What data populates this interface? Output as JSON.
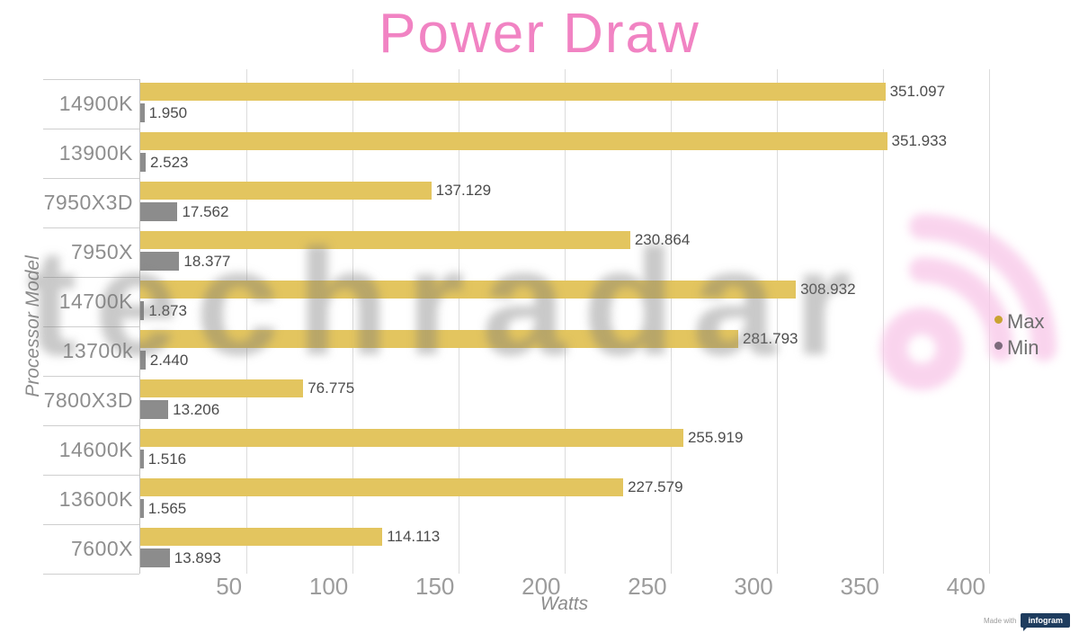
{
  "title": "Power Draw",
  "watermark": {
    "text": "techradar"
  },
  "badge": {
    "prefix": "Made with",
    "brand": "infogram"
  },
  "colors": {
    "title_pink": "#f183c3",
    "max_bar": "#e3c55f",
    "min_bar": "#8c8c8c",
    "legend_dots": [
      "#c9a331",
      "#7c6b7c"
    ],
    "watermark_pink": "#f8c6e8",
    "infogram_navy": "#1e3c5e"
  },
  "chart_data": {
    "type": "bar",
    "orientation": "horizontal",
    "title": "Power Draw",
    "xlabel": "Watts",
    "ylabel": "Processor Model",
    "x_ticks": [
      50,
      100,
      150,
      200,
      250,
      300,
      350,
      400
    ],
    "xlim": [
      0,
      400
    ],
    "grid": "vertical",
    "legend_position": "right",
    "value_decimals": 3,
    "categories": [
      "14900K",
      "13900K",
      "7950X3D",
      "7950X",
      "14700K",
      "13700k",
      "7800X3D",
      "14600K",
      "13600K",
      "7600X"
    ],
    "series": [
      {
        "name": "Max",
        "color": "#e3c55f",
        "values": [
          351.097,
          351.933,
          137.129,
          230.864,
          308.932,
          281.793,
          76.775,
          255.919,
          227.579,
          114.113
        ]
      },
      {
        "name": "Min",
        "color": "#8c8c8c",
        "values": [
          1.95,
          2.523,
          17.562,
          18.377,
          1.873,
          2.44,
          13.206,
          1.516,
          1.565,
          13.893
        ]
      }
    ]
  }
}
